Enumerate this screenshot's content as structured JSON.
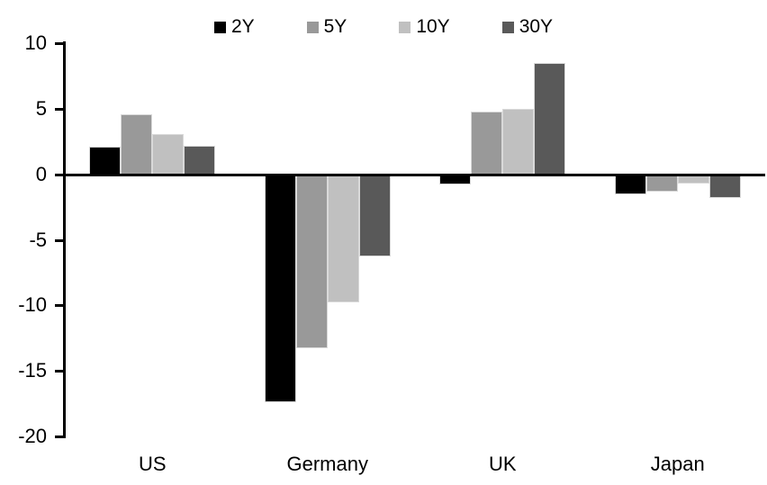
{
  "chart_data": {
    "type": "bar",
    "title": "",
    "categories": [
      "US",
      "Germany",
      "UK",
      "Japan"
    ],
    "series": [
      {
        "name": "2Y",
        "color": "#000000",
        "values": [
          2.1,
          -17.4,
          -0.8,
          -1.5
        ]
      },
      {
        "name": "5Y",
        "color": "#999999",
        "values": [
          4.6,
          -13.3,
          4.8,
          -1.3
        ]
      },
      {
        "name": "10Y",
        "color": "#c0c0c0",
        "values": [
          3.1,
          -9.8,
          5.0,
          -0.7
        ]
      },
      {
        "name": "30Y",
        "color": "#595959",
        "values": [
          2.2,
          -6.3,
          8.5,
          -1.8
        ]
      }
    ],
    "ylim": [
      -20,
      10
    ],
    "yticks": [
      10,
      5,
      0,
      -5,
      -10,
      -15,
      -20
    ],
    "legend_position": "top",
    "grid": false,
    "axis_color": "#000000",
    "background_color": "#ffffff"
  }
}
